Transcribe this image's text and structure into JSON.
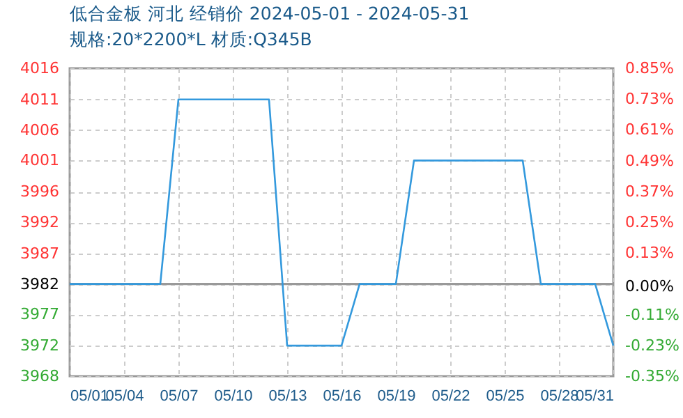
{
  "chart_data": {
    "type": "line",
    "title": "低合金板 河北 经销价 2024-05-01 - 2024-05-31",
    "subtitle": "规格:20*2200*L 材质:Q345B",
    "x": [
      "2024-05-01",
      "2024-05-06",
      "2024-05-07",
      "2024-05-12",
      "2024-05-13",
      "2024-05-16",
      "2024-05-17",
      "2024-05-19",
      "2024-05-20",
      "2024-05-26",
      "2024-05-27",
      "2024-05-30",
      "2024-05-31"
    ],
    "series": [
      {
        "color": "#3399dd",
        "values": [
          3982,
          3982,
          4011,
          4011,
          3972.3,
          3972.3,
          3982,
          3982,
          4001.4,
          4001.4,
          3982,
          3982,
          3972.3
        ]
      }
    ],
    "xlim": [
      "2024-05-01",
      "2024-05-31"
    ],
    "xticks": [
      {
        "value": "2024-05-01",
        "label": "05/01"
      },
      {
        "value": "2024-05-04",
        "label": "05/04"
      },
      {
        "value": "2024-05-07",
        "label": "05/07"
      },
      {
        "value": "2024-05-10",
        "label": "05/10"
      },
      {
        "value": "2024-05-13",
        "label": "05/13"
      },
      {
        "value": "2024-05-16",
        "label": "05/16"
      },
      {
        "value": "2024-05-19",
        "label": "05/19"
      },
      {
        "value": "2024-05-22",
        "label": "05/22"
      },
      {
        "value": "2024-05-25",
        "label": "05/25"
      },
      {
        "value": "2024-05-28",
        "label": "05/28"
      },
      {
        "value": "2024-05-31",
        "label": "05/31"
      }
    ],
    "ylim": [
      3967.5,
      4015.9
    ],
    "yticks": [
      {
        "value": 3967.5,
        "label": "3968"
      },
      {
        "value": 3972.3,
        "label": "3972"
      },
      {
        "value": 3977.2,
        "label": "3977"
      },
      {
        "value": 3982,
        "label": "3982"
      },
      {
        "value": 3986.8,
        "label": "3987"
      },
      {
        "value": 3991.7,
        "label": "3992"
      },
      {
        "value": 3996.5,
        "label": "3996"
      },
      {
        "value": 4001.4,
        "label": "4001"
      },
      {
        "value": 4006.2,
        "label": "4006"
      },
      {
        "value": 4011,
        "label": "4011"
      },
      {
        "value": 4015.9,
        "label": "4016"
      }
    ],
    "y2lim": [
      -0.35,
      0.85
    ],
    "y2ticks": [
      {
        "value": -0.35,
        "label": "-0.35%"
      },
      {
        "value": -0.23,
        "label": "-0.23%"
      },
      {
        "value": -0.11,
        "label": "-0.11%"
      },
      {
        "value": 0,
        "label": "0.00%"
      },
      {
        "value": 0.13,
        "label": "0.13%"
      },
      {
        "value": 0.25,
        "label": "0.25%"
      },
      {
        "value": 0.37,
        "label": "0.37%"
      },
      {
        "value": 0.49,
        "label": "0.49%"
      },
      {
        "value": 0.61,
        "label": "0.61%"
      },
      {
        "value": 0.73,
        "label": "0.73%"
      },
      {
        "value": 0.85,
        "label": "0.85%"
      }
    ],
    "ref_lines": [
      {
        "axis": "y",
        "value": 3982,
        "color": "#999999"
      }
    ],
    "grid": true,
    "marker": "none",
    "line_style": "solid"
  }
}
